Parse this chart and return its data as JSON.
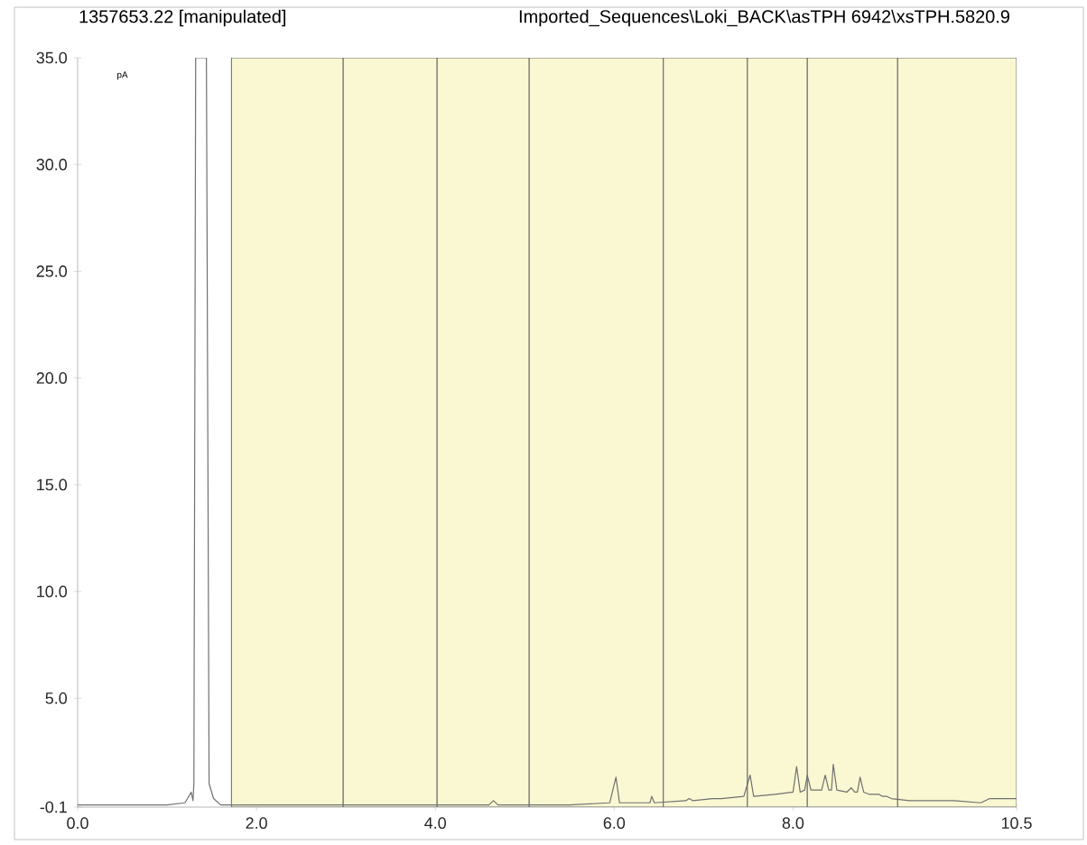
{
  "chart_data": {
    "type": "line",
    "title": "1357653.22 [manipulated]",
    "subtitle": "Imported_Sequences\\Loki_BACK\\asTPH 6942\\xsTPH.5820.9",
    "ylabel": "pA",
    "xlim": [
      0,
      10.5
    ],
    "ylim": [
      -0.1,
      35.0
    ],
    "xticks": [
      {
        "value": 0,
        "label": "0.0"
      },
      {
        "value": 2,
        "label": "2.0"
      },
      {
        "value": 4,
        "label": "4.0"
      },
      {
        "value": 6,
        "label": "6.0"
      },
      {
        "value": 8,
        "label": "8.0"
      },
      10.5
    ],
    "yticks": [
      -0.1,
      {
        "value": 5,
        "label": "5.0"
      },
      {
        "value": 10,
        "label": "10.0"
      },
      {
        "value": 15,
        "label": "15.0"
      },
      {
        "value": 20,
        "label": "20.0"
      },
      {
        "value": 25,
        "label": "25.0"
      },
      {
        "value": 30,
        "label": "30.0"
      },
      {
        "value": 35,
        "label": "35.0"
      }
    ],
    "grid": false,
    "marker": "none",
    "line_style": "solid",
    "bands": [
      {
        "axis": "x",
        "from": 1.72,
        "to": 2.97,
        "color": "#faf8d2"
      },
      {
        "axis": "x",
        "from": 2.97,
        "to": 4.02,
        "color": "#faf8d2"
      },
      {
        "axis": "x",
        "from": 4.02,
        "to": 5.05,
        "color": "#faf8d2"
      },
      {
        "axis": "x",
        "from": 5.05,
        "to": 6.55,
        "color": "#faf8d2"
      },
      {
        "axis": "x",
        "from": 6.55,
        "to": 7.49,
        "color": "#faf8d2"
      },
      {
        "axis": "x",
        "from": 7.49,
        "to": 8.16,
        "color": "#faf8d2"
      },
      {
        "axis": "x",
        "from": 8.16,
        "to": 9.17,
        "color": "#faf8d2"
      },
      {
        "axis": "x",
        "from": 9.17,
        "to": 10.5,
        "color": "#faf8d2"
      }
    ],
    "series": [
      {
        "color": "#707070",
        "x": [
          0.0,
          0.5,
          1.0,
          1.2,
          1.27,
          1.29,
          1.3,
          1.32,
          1.44,
          1.47,
          1.52,
          1.6,
          2.0,
          3.0,
          4.0,
          4.6,
          4.65,
          4.7,
          5.0,
          5.5,
          5.95,
          6.02,
          6.06,
          6.3,
          6.4,
          6.42,
          6.45,
          6.8,
          6.84,
          6.88,
          7.1,
          7.15,
          7.2,
          7.45,
          7.52,
          7.56,
          7.8,
          8.0,
          8.04,
          8.08,
          8.13,
          8.16,
          8.2,
          8.32,
          8.36,
          8.4,
          8.43,
          8.45,
          8.49,
          8.6,
          8.65,
          8.69,
          8.72,
          8.75,
          8.79,
          8.85,
          8.88,
          8.92,
          8.96,
          9.0,
          9.03,
          9.05,
          9.1,
          9.3,
          9.8,
          10.1,
          10.2,
          10.5
        ],
        "values": [
          0,
          0,
          0,
          0.1,
          0.6,
          0.2,
          1.0,
          35.0,
          35.0,
          1.0,
          0.3,
          0,
          0,
          0,
          0,
          0,
          0.2,
          0,
          0,
          0,
          0.1,
          1.3,
          0.1,
          0.1,
          0.1,
          0.4,
          0.1,
          0.2,
          0.3,
          0.2,
          0.3,
          0.3,
          0.3,
          0.4,
          1.4,
          0.4,
          0.5,
          0.6,
          1.8,
          0.6,
          0.7,
          1.4,
          0.7,
          0.7,
          1.4,
          0.7,
          0.7,
          1.9,
          0.7,
          0.6,
          0.8,
          0.6,
          0.6,
          1.3,
          0.6,
          0.5,
          0.5,
          0.5,
          0.5,
          0.4,
          0.4,
          0.4,
          0.3,
          0.2,
          0.2,
          0.1,
          0.3,
          0.3
        ]
      }
    ]
  }
}
